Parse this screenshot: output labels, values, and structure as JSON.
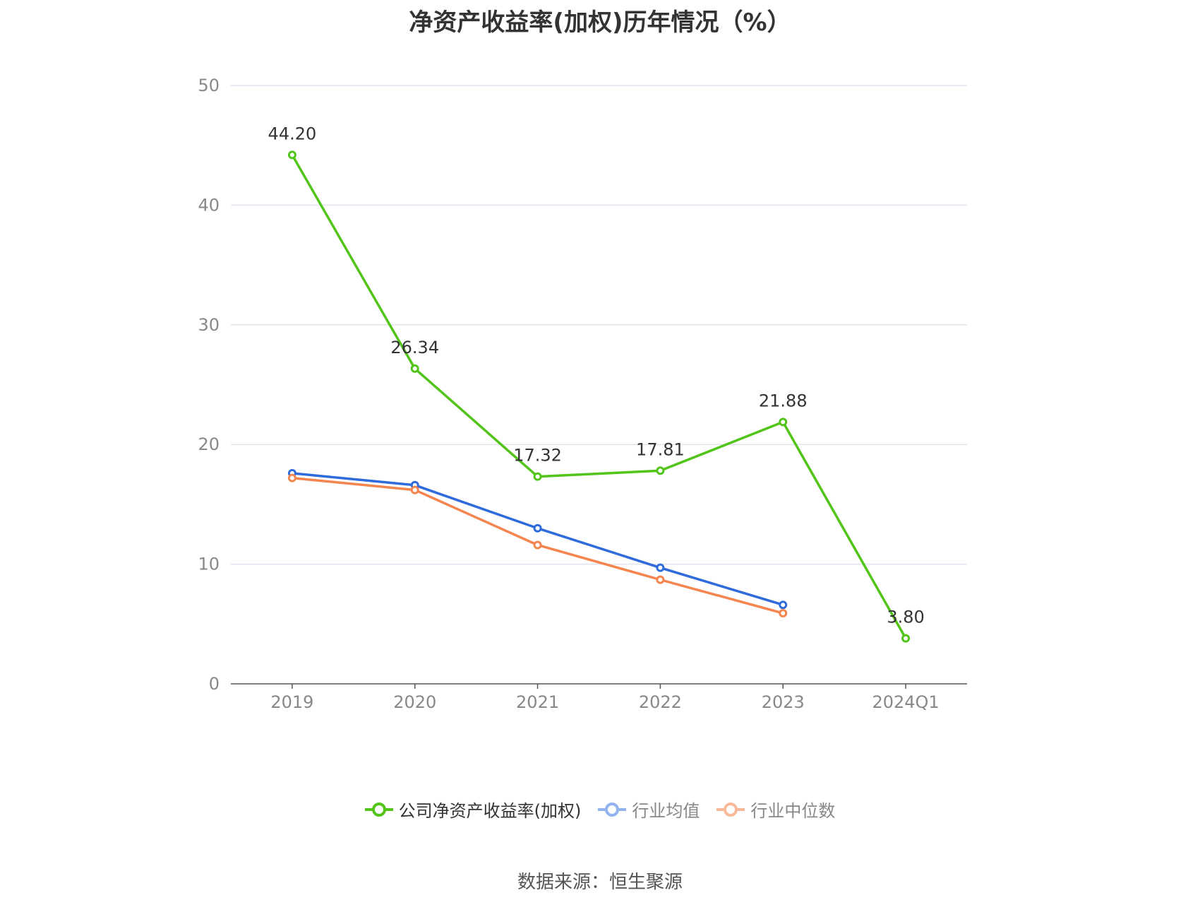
{
  "chart_data": {
    "type": "line",
    "title": "净资产收益率(加权)历年情况（%）",
    "categories": [
      "2019",
      "2020",
      "2021",
      "2022",
      "2023",
      "2024Q1"
    ],
    "ylim": [
      0,
      50
    ],
    "yticks": [
      0,
      10,
      20,
      30,
      40,
      50
    ],
    "grid": true,
    "legend_position": "bottom",
    "series": [
      {
        "name": "公司净资产收益率(加权)",
        "color": "#52c41a",
        "values": [
          44.2,
          26.34,
          17.32,
          17.81,
          21.88,
          3.8
        ],
        "labels": [
          "44.20",
          "26.34",
          "17.32",
          "17.81",
          "21.88",
          "3.80"
        ]
      },
      {
        "name": "行业均值",
        "color": "#2f6bdb",
        "legend_color": "#93b4ee",
        "values": [
          17.6,
          16.6,
          13.0,
          9.7,
          6.6,
          null
        ]
      },
      {
        "name": "行业中位数",
        "color": "#f5854f",
        "legend_color": "#f8b99a",
        "values": [
          17.2,
          16.2,
          11.6,
          8.7,
          5.9,
          null
        ]
      }
    ]
  },
  "source": "数据来源：恒生聚源"
}
